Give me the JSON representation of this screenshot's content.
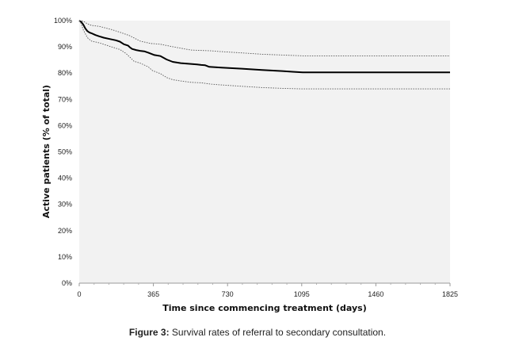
{
  "chart_data": {
    "type": "line",
    "title": "",
    "xlabel": "Time since commencing treatment (days)",
    "ylabel": "Active patients (% of total)",
    "xlim": [
      0,
      1825
    ],
    "ylim": [
      0,
      100
    ],
    "x_ticks": [
      0,
      365,
      730,
      1095,
      1460,
      1825
    ],
    "y_ticks": [
      "0%",
      "10%",
      "20%",
      "30%",
      "40%",
      "50%",
      "60%",
      "70%",
      "80%",
      "90%",
      "100%"
    ],
    "grid": false,
    "legend": "none",
    "colors": {
      "plot_bg": "#f2f2f2",
      "main_line": "#000000",
      "ci_line": "#555555"
    },
    "series": [
      {
        "role": "estimate",
        "x": [
          0,
          10,
          20,
          30,
          40,
          50,
          60,
          80,
          100,
          120,
          150,
          180,
          200,
          220,
          240,
          250,
          260,
          280,
          300,
          320,
          340,
          370,
          400,
          430,
          460,
          500,
          550,
          580,
          600,
          620,
          640,
          700,
          800,
          900,
          1000,
          1050,
          1100,
          1200,
          1400,
          1600,
          1825
        ],
        "y": [
          100,
          99.5,
          98.5,
          97,
          96,
          95.5,
          95.2,
          94.5,
          94,
          93.5,
          93,
          92.5,
          92,
          91,
          90.5,
          89.8,
          89.2,
          88.8,
          88.5,
          88.3,
          87.8,
          86.9,
          86.5,
          85.2,
          84.3,
          83.8,
          83.5,
          83.3,
          83.1,
          83,
          82.4,
          82.1,
          81.7,
          81.2,
          80.8,
          80.5,
          80.3,
          80.3,
          80.3,
          80.3,
          80.3
        ]
      },
      {
        "role": "upper-bound",
        "x": [
          0,
          20,
          40,
          60,
          100,
          150,
          200,
          250,
          280,
          300,
          350,
          400,
          450,
          500,
          550,
          650,
          700,
          800,
          900,
          1000,
          1100,
          1200,
          1400,
          1600,
          1825
        ],
        "y": [
          100,
          99.8,
          98.8,
          98.2,
          97.8,
          96.8,
          95.6,
          94.2,
          93,
          92.2,
          91.3,
          91,
          90.2,
          89.5,
          88.8,
          88.5,
          88.2,
          87.7,
          87.2,
          86.9,
          86.6,
          86.6,
          86.6,
          86.6,
          86.6
        ]
      },
      {
        "role": "lower-bound",
        "x": [
          0,
          10,
          20,
          40,
          60,
          100,
          150,
          200,
          230,
          250,
          270,
          300,
          340,
          360,
          400,
          430,
          460,
          500,
          550,
          600,
          650,
          700,
          800,
          900,
          1000,
          1100,
          1200,
          1400,
          1600,
          1825
        ],
        "y": [
          100,
          98.8,
          96.5,
          93.5,
          92.2,
          91.5,
          90.2,
          89,
          87.5,
          86,
          84.5,
          83.8,
          82.4,
          81,
          79.8,
          78.3,
          77.5,
          77,
          76.5,
          76.3,
          75.8,
          75.5,
          75,
          74.5,
          74.2,
          74,
          74,
          74,
          74,
          74
        ]
      }
    ]
  },
  "caption": {
    "label": "Figure 3:",
    "text": " Survival rates of referral to secondary consultation."
  }
}
